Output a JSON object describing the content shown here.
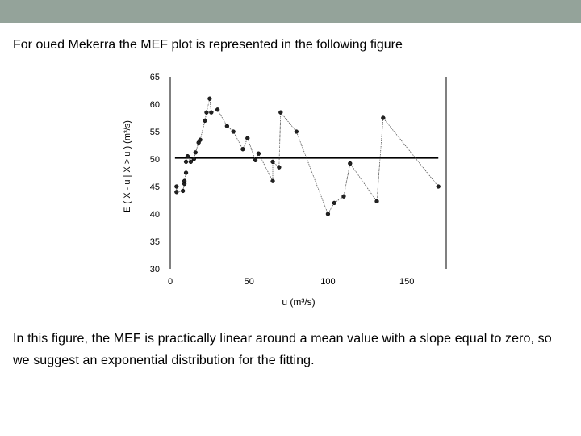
{
  "theme": {
    "top_bar_color": "#94a39a"
  },
  "slide": {
    "intro_text": "For oued Mekerra the MEF plot is represented in the following figure",
    "conclusion_text": "In this figure, the MEF is practically linear around a mean value with a slope equal to zero, so we suggest an exponential distribution for the fitting."
  },
  "chart_data": {
    "type": "line",
    "title": "",
    "xlabel": "u (m³/s)",
    "ylabel": "E ( X - u | X > u ) (m³/s)",
    "xlim": [
      0,
      175
    ],
    "ylim": [
      30,
      65
    ],
    "x_ticks": [
      "0",
      "50",
      "100",
      "150"
    ],
    "y_ticks": [
      "30",
      "35",
      "40",
      "45",
      "50",
      "55",
      "60",
      "65"
    ],
    "grid": false,
    "reference_line": {
      "y": 50.2,
      "x_range": [
        3,
        170
      ]
    },
    "series": [
      {
        "points": [
          [
            4,
            45
          ],
          [
            4,
            44
          ],
          [
            8,
            44.2
          ],
          [
            9,
            45.5
          ],
          [
            9,
            46
          ],
          [
            10,
            47.5
          ],
          [
            10,
            49.5
          ],
          [
            11,
            50.5
          ],
          [
            13,
            49.5
          ],
          [
            15,
            50
          ],
          [
            16,
            51.2
          ],
          [
            18,
            53
          ],
          [
            19,
            53.5
          ],
          [
            22,
            57
          ],
          [
            23,
            58.5
          ],
          [
            25,
            61
          ],
          [
            26,
            58.5
          ],
          [
            30,
            59
          ],
          [
            36,
            56
          ],
          [
            40,
            55
          ],
          [
            46,
            51.8
          ],
          [
            49,
            53.8
          ],
          [
            54,
            49.8
          ],
          [
            56,
            51
          ],
          [
            65,
            46
          ],
          [
            65,
            49.5
          ],
          [
            69,
            48.5
          ],
          [
            70,
            58.5
          ],
          [
            80,
            55
          ],
          [
            100,
            40
          ],
          [
            104,
            42
          ],
          [
            110,
            43.2
          ],
          [
            114,
            49.2
          ],
          [
            131,
            42.3
          ],
          [
            135,
            57.5
          ],
          [
            170,
            45
          ]
        ]
      }
    ]
  }
}
